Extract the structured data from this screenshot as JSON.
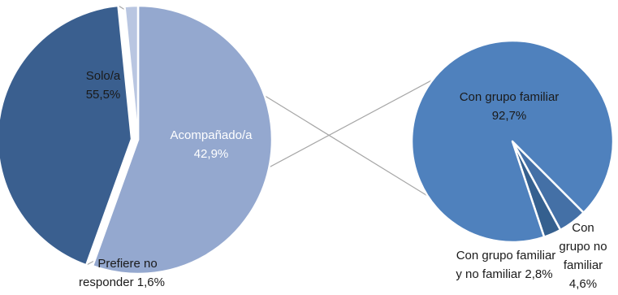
{
  "chart_data": [
    {
      "type": "pie",
      "slices": [
        {
          "label": "Solo/a",
          "value": 55.5,
          "value_label": "55,5%",
          "color": "#94A8CF"
        },
        {
          "label": "Acompañado/a",
          "value": 42.9,
          "value_label": "42,9%",
          "color": "#3A5F8F",
          "exploded": true
        },
        {
          "label": "Prefiere no responder",
          "value": 1.6,
          "value_label": "1,6%",
          "color": "#B9C6E1"
        }
      ]
    },
    {
      "type": "pie",
      "slices": [
        {
          "label": "Con grupo familiar",
          "value": 92.7,
          "value_label": "92,7%",
          "color": "#4F81BD"
        },
        {
          "label": "Con grupo familiar y no familiar",
          "value": 2.8,
          "value_label": "2,8%",
          "color": "#35608F"
        },
        {
          "label": "Con grupo no familiar",
          "value": 4.6,
          "value_label": "4,6%",
          "color": "#4470A6"
        }
      ]
    }
  ],
  "labels": {
    "solo_line1": "Solo/a",
    "solo_line2": "55,5%",
    "acomp_line1": "Acompañado/a",
    "acomp_line2": "42,9%",
    "prefiere_line1": "Prefiere no",
    "prefiere_line2": "responder 1,6%",
    "familiar_line1": "Con grupo familiar",
    "familiar_line2": "92,7%",
    "mixto_line1": "Con grupo familiar",
    "mixto_line2": "y no familiar 2,8%",
    "nofam_line1": "Con",
    "nofam_line2": "grupo no",
    "nofam_line3": "familiar",
    "nofam_line4": "4,6%"
  }
}
